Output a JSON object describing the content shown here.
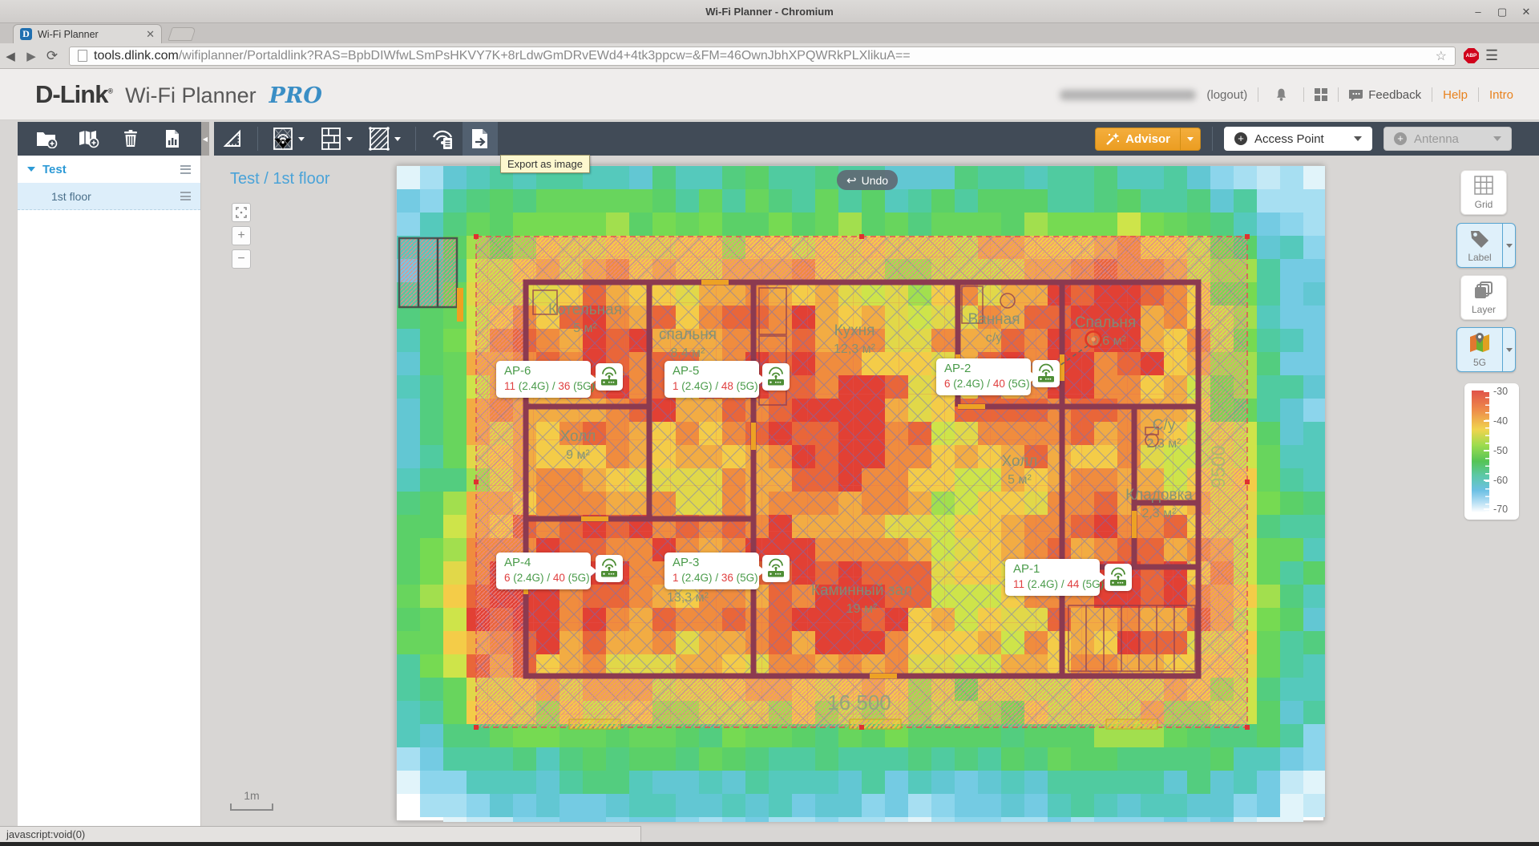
{
  "window": {
    "title": "Wi-Fi Planner - Chromium",
    "tab_title": "Wi-Fi Planner"
  },
  "browser": {
    "url_domain": "tools.dlink.com",
    "url_path": "/wifiplanner/Portaldlink?RAS=BpbDIWfwLSmPsHKVY7K+8rLdwGmDRvEWd4+4tk3ppcw=&FM=46OwnJbhXPQWRkPLXlikuA==",
    "adblock_badge": "1",
    "adblock_label": "ABP"
  },
  "header": {
    "brand": "D-Link",
    "app_name": "Wi-Fi Planner",
    "edition": "PRO",
    "logout": "(logout)",
    "feedback": "Feedback",
    "help": "Help",
    "intro": "Intro"
  },
  "sidebar": {
    "project": "Test",
    "floors": [
      {
        "label": "1st floor",
        "selected": true
      }
    ]
  },
  "toolbar": {
    "tooltip": "Export as image",
    "advisor": "Advisor",
    "access_point": "Access Point",
    "antenna": "Antenna"
  },
  "canvas": {
    "breadcrumb": "Test / 1st floor",
    "undo": "Undo",
    "scale": "1m"
  },
  "right_panel": {
    "buttons": [
      {
        "label": "Grid",
        "active": false
      },
      {
        "label": "Label",
        "active": true
      },
      {
        "label": "Layer",
        "active": false
      },
      {
        "label": "5G",
        "active": true
      }
    ],
    "legend_ticks": [
      "-30",
      "-40",
      "-50",
      "-60",
      "-70"
    ]
  },
  "floorplan": {
    "rooms": [
      {
        "name": "Котельная",
        "area": "5 м²"
      },
      {
        "name": "спальня",
        "area": "8,4 м²"
      },
      {
        "name": "Кухня",
        "area": "12,3 м²"
      },
      {
        "name": "Ванная",
        "area": "с/у"
      },
      {
        "name": "Спальня",
        "area": "10,6 м²"
      },
      {
        "name": "Холл",
        "area": "9 м²"
      },
      {
        "name": "Холл",
        "area": "5 м²"
      },
      {
        "name": "С/у",
        "area": "2,3 м²"
      },
      {
        "name": "Кладовка",
        "area": "2,3 м²"
      },
      {
        "name": "Каминный зал",
        "area": "19 м²"
      },
      {
        "name": "",
        "area": "13,3 м²"
      }
    ],
    "dimensions": {
      "width": "16 500",
      "height": "9500"
    },
    "band24": "(2.4G)",
    "band5": "(5G)",
    "separator": "/",
    "aps": [
      {
        "name": "AP-6",
        "ch24": "11",
        "ch5": "36"
      },
      {
        "name": "AP-5",
        "ch24": "1",
        "ch5": "48"
      },
      {
        "name": "AP-2",
        "ch24": "6",
        "ch5": "40"
      },
      {
        "name": "AP-4",
        "ch24": "6",
        "ch5": "40"
      },
      {
        "name": "AP-3",
        "ch24": "1",
        "ch5": "36"
      },
      {
        "name": "AP-1",
        "ch24": "11",
        "ch5": "44"
      }
    ]
  },
  "status_bar": "javascript:void(0)",
  "colors": {
    "accent_blue": "#2d9ad6",
    "advisor_orange": "#eb9d22",
    "signal_red": "#e04040",
    "ap_green": "#4a9b4a"
  }
}
